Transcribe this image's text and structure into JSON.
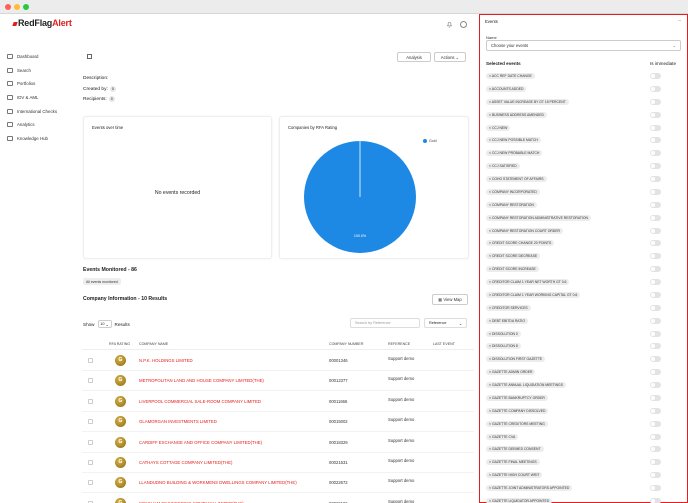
{
  "brand": {
    "part1": "RedFlag",
    "part2": "Alert",
    "color": "#e0201d"
  },
  "sidebar": {
    "items": [
      {
        "label": "Dashboard",
        "icon": "home-icon"
      },
      {
        "label": "Search",
        "icon": "search-icon"
      },
      {
        "label": "Portfolios",
        "icon": "folder-icon"
      },
      {
        "label": "IDV & AML",
        "icon": "id-card-icon"
      },
      {
        "label": "International Checks",
        "icon": "globe-icon"
      },
      {
        "label": "Analytics",
        "icon": "chart-icon"
      },
      {
        "label": "Knowledge Hub",
        "icon": "book-icon"
      }
    ]
  },
  "header_buttons": {
    "analysis": "Analysis",
    "actions": "Actions"
  },
  "portfolio": {
    "description_label": "Description:",
    "created_label": "Created by:",
    "created_count": "0",
    "recipients_label": "Recipients:",
    "recipients_count": "0"
  },
  "events_over_time": {
    "title": "Events over time",
    "empty": "No events recorded"
  },
  "chart_data": {
    "type": "pie",
    "title": "Companies by RFA Rating",
    "slices": [
      {
        "label": "Gold",
        "value": 100.0,
        "percent_label": "100.0%",
        "color": "#1e88e5"
      }
    ],
    "legend": "top-right"
  },
  "events_monitored": {
    "title": "Events Monitored - 86",
    "badge": "All events monitored"
  },
  "company_info": {
    "title": "Company Information - 10 Results",
    "view_map": "View Map",
    "show_label": "Show",
    "show_value": "10",
    "results_label": "Results",
    "search_placeholder": "Search by Reference",
    "sort_value": "Reference",
    "columns": [
      "RFA Rating",
      "Company Name",
      "Company Number",
      "Reference",
      "Last Event"
    ],
    "rows": [
      {
        "rating": "G",
        "name": "N.P.K. HOLDINGS LIMITED",
        "number": "00001346",
        "reference": "Support demo"
      },
      {
        "rating": "G",
        "name": "METROPOLITAN LAND AND HOUSE COMPANY LIMITED(THE)",
        "number": "00012377",
        "reference": "Support demo"
      },
      {
        "rating": "G",
        "name": "LIVERPOOL COMMERCIAL SALE-ROOM COMPANY LIMITED",
        "number": "00011666",
        "reference": "Support demo"
      },
      {
        "rating": "G",
        "name": "GLAMORGAN INVESTMENTS LIMITED",
        "number": "00015002",
        "reference": "Support demo"
      },
      {
        "rating": "G",
        "name": "CARDIFF EXCHANGE AND OFFICE COMPANY LIMITED(THE)",
        "number": "00018329",
        "reference": "Support demo"
      },
      {
        "rating": "G",
        "name": "CATHAYS COTTAGE COMPANY LIMITED(THE)",
        "number": "00021531",
        "reference": "Support demo"
      },
      {
        "rating": "G",
        "name": "LLANDUDNO BUILDING & WORKMENS DWELLINGS COMPANY LIMITED(THE)",
        "number": "00022672",
        "reference": "Support demo"
      },
      {
        "rating": "G",
        "name": "WINGHAM ENGINEERING COMPANY LIMITED(THE)",
        "number": "00029186",
        "reference": "Support demo"
      }
    ]
  },
  "events_panel": {
    "title": "Events",
    "name_label": "Name",
    "select_placeholder": "Choose your events",
    "selected_label": "Selected events",
    "immediate_label": "Is immediate",
    "events": [
      "ACC REF DATE CHANGE",
      "ACCOUNTS ADDED",
      "ASSET VALUE INCREASE BY GT 15 PERCENT",
      "BUSINESS ADDRESS AMENDED",
      "CCJ NEW",
      "CCJ NEW POSSIBLE MATCH",
      "CCJ NEW PROBABLE MATCH",
      "CCJ SATISFIED",
      "COHO STATEMENT OF AFFAIRS",
      "COMPANY INCORPORATED",
      "COMPANY RESTORATION",
      "COMPANY RESTORATION ADMINISTRATIVE RESTORATION",
      "COMPANY RESTORATION COURT ORDER",
      "CREDIT SCORE CHANGE 20 POINTS",
      "CREDIT SCORE DECREASE",
      "CREDIT SCORE INCREASE",
      "CREDITOR CLAIM 1 YEAR NET WORTH GT 0.6",
      "CREDITOR CLAIM 1 YEAR WORKING CAPITAL GT 0.6",
      "CREDITOR SERVICES",
      "DEBT EBITDA RATIO",
      "DISSOLUTION 0",
      "DISSOLUTION 8",
      "DISSOLUTION FIRST GAZETTE",
      "GAZETTE ADMIN ORDER",
      "GAZETTE ANNUAL LIQUIDATION MEETINGS",
      "GAZETTE BANKRUPTCY ORDER",
      "GAZETTE COMPANY DISSOLVED",
      "GAZETTE CREDITORS MEETING",
      "GAZETTE CVA",
      "GAZETTE DEEMED CONSENT",
      "GAZETTE FINAL MEETINGS",
      "GAZETTE HIGH COURT WRIT",
      "GAZETTE JOINT ADMINISTRATORS APPOINTED",
      "GAZETTE LIQUIDATOR APPOINTED"
    ]
  }
}
